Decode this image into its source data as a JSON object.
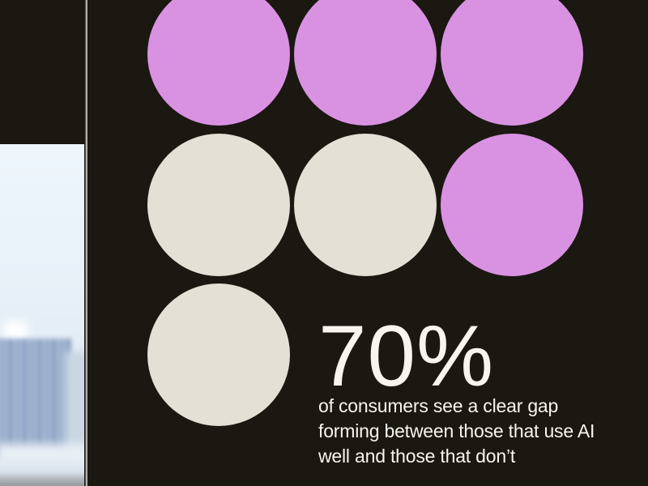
{
  "colors": {
    "background": "#1b1711",
    "purple": "#d992e2",
    "beige": "#e5e0d5",
    "text": "#f8f5ee",
    "divider": "#b1b0aa"
  },
  "stat": {
    "value": "70%",
    "caption_lines": [
      "of consumers see a clear gap",
      "forming between those that use AI",
      "well and those that don’t"
    ]
  },
  "photo": {
    "alt": "blurred-city-skyline-photo"
  },
  "chart_data": {
    "type": "pictograph",
    "title": "70%",
    "value_percent": 70,
    "caption": "of consumers see a clear gap forming between those that use AI well and those that don't",
    "units_shown": 7,
    "unit_color_counts": {
      "purple": 4,
      "beige": 3
    },
    "grid": [
      [
        "purple",
        "purple",
        "purple"
      ],
      [
        "beige",
        "beige",
        "purple"
      ],
      [
        "beige",
        null,
        null
      ]
    ],
    "legend_position": "none",
    "grid_lines": false
  }
}
